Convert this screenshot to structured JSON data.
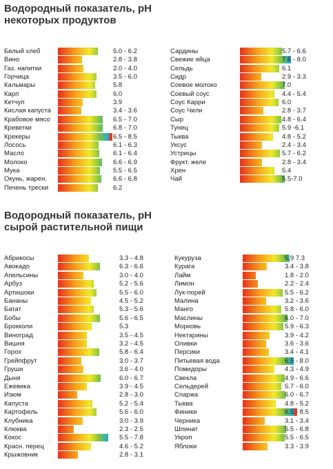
{
  "section1": {
    "title_line1": "Водородный показатель, pH",
    "title_line2": "некоторых продуктов"
  },
  "section2": {
    "title_line1": "Водородный показатель, pH",
    "title_line2": "сырой растительной пищи"
  },
  "colors": {
    "gradient": [
      "#e8301c",
      "#f7a21b",
      "#f2e82a",
      "#84c441",
      "#1aa7e0"
    ]
  },
  "chart_data": [
    {
      "type": "bar",
      "title": "Водородный показатель, pH некоторых продуктов",
      "xlabel": "",
      "ylabel": "",
      "xlim": [
        0,
        8
      ],
      "grid": false,
      "columns": [
        {
          "items": [
            {
              "name": "Белый хлеб",
              "range_label": "5.0 - 6.2",
              "min": 5.0,
              "max": 6.2
            },
            {
              "name": "Вино",
              "range_label": "2.8 - 3.8",
              "min": 2.8,
              "max": 3.8
            },
            {
              "name": "Газ. напитки",
              "range_label": "2.0 - 4.0",
              "min": 2.0,
              "max": 4.0
            },
            {
              "name": "Горчица",
              "range_label": "3.5 - 6.0",
              "min": 3.5,
              "max": 6.0
            },
            {
              "name": "Кальмары",
              "range_label": "5.8",
              "min": 5.8,
              "max": 5.8
            },
            {
              "name": "Карп",
              "range_label": "6.0",
              "min": 6.0,
              "max": 6.0
            },
            {
              "name": "Кетчуп",
              "range_label": "3.9",
              "min": 3.9,
              "max": 3.9
            },
            {
              "name": "Кислая капуста",
              "range_label": "3.4 - 3.6",
              "min": 3.4,
              "max": 3.6
            },
            {
              "name": "Крабовое мясо",
              "range_label": "6.5 - 7.0",
              "min": 6.5,
              "max": 7.0
            },
            {
              "name": "Креветки",
              "range_label": "6.8 - 7.0",
              "min": 6.8,
              "max": 7.0
            },
            {
              "name": "Крекеры",
              "range_label": "6.5 - 8.5",
              "min": 6.5,
              "max": 8.5
            },
            {
              "name": "Лосось",
              "range_label": "6.1 - 6.3",
              "min": 6.1,
              "max": 6.3
            },
            {
              "name": "Масло",
              "range_label": "6.1 - 6.4",
              "min": 6.1,
              "max": 6.4
            },
            {
              "name": "Молоко",
              "range_label": "6.6 - 6.9",
              "min": 6.6,
              "max": 6.9
            },
            {
              "name": "Мука",
              "range_label": "5.5 - 6.5",
              "min": 5.5,
              "max": 6.5
            },
            {
              "name": "Окунь, жарен.",
              "range_label": "6.6 - 6.8",
              "min": 6.6,
              "max": 6.8
            },
            {
              "name": "Печень трески",
              "range_label": "6.2",
              "min": 6.2,
              "max": 6.2
            }
          ]
        },
        {
          "items": [
            {
              "name": "Сардины",
              "range_label": "5.7 - 6.6",
              "min": 5.7,
              "max": 6.6
            },
            {
              "name": "Свежие яйца",
              "range_label": "7.6 - 8.0",
              "min": 7.6,
              "max": 8.0
            },
            {
              "name": "Сельдь",
              "range_label": "6.1",
              "min": 6.1,
              "max": 6.1
            },
            {
              "name": "Сидр",
              "range_label": "2.9 - 3.3",
              "min": 2.9,
              "max": 3.3
            },
            {
              "name": "Соевое молоко",
              "range_label": "7.0",
              "min": 7.0,
              "max": 7.0
            },
            {
              "name": "Соевый соус",
              "range_label": "4.4 - 5.4",
              "min": 4.4,
              "max": 5.4
            },
            {
              "name": "Соус Карри",
              "range_label": "6.0",
              "min": 6.0,
              "max": 6.0
            },
            {
              "name": "Соус Чили",
              "range_label": "2.8 - 3.7",
              "min": 2.8,
              "max": 3.7
            },
            {
              "name": "Сыр",
              "range_label": "4.8 - 6.4",
              "min": 4.8,
              "max": 6.4
            },
            {
              "name": "Тунец",
              "range_label": "5.9 -6.1",
              "min": 5.9,
              "max": 6.1
            },
            {
              "name": "Тыква",
              "range_label": "4.8 - 5.2",
              "min": 4.8,
              "max": 5.2
            },
            {
              "name": "Уксус",
              "range_label": "2.4 - 3.4",
              "min": 2.4,
              "max": 3.4
            },
            {
              "name": "Устрицы",
              "range_label": "5.7 - 6.2",
              "min": 5.7,
              "max": 6.2
            },
            {
              "name": "Фрукт. желе",
              "range_label": "2.8 - 3.4",
              "min": 2.8,
              "max": 3.4
            },
            {
              "name": "Хрен",
              "range_label": "5.4",
              "min": 5.4,
              "max": 5.4
            },
            {
              "name": "Чай",
              "range_label": "5.5-7.0",
              "min": 5.5,
              "max": 7.0
            }
          ]
        }
      ]
    },
    {
      "type": "bar",
      "title": "Водородный показатель, pH сырой растительной пищи",
      "xlabel": "",
      "ylabel": "",
      "xlim": [
        0,
        8
      ],
      "grid": false,
      "columns": [
        {
          "items": [
            {
              "name": "Абрикосы",
              "range_label": "3.3 - 4.8",
              "min": 3.3,
              "max": 4.8
            },
            {
              "name": "Авокадо",
              "range_label": "6.3 - 6.6",
              "min": 6.3,
              "max": 6.6
            },
            {
              "name": "Апельсины",
              "range_label": "3.0 - 4.0",
              "min": 3.0,
              "max": 4.0
            },
            {
              "name": "Арбуз",
              "range_label": "5.2 - 5.6",
              "min": 5.2,
              "max": 5.6
            },
            {
              "name": "Артишоки",
              "range_label": "5.5 - 6.0",
              "min": 5.5,
              "max": 6.0
            },
            {
              "name": "Бананы",
              "range_label": "4.5 - 5.2",
              "min": 4.5,
              "max": 5.2
            },
            {
              "name": "Батат",
              "range_label": "5.3 - 5.6",
              "min": 5.3,
              "max": 5.6
            },
            {
              "name": "Бобы",
              "range_label": "5.6 - 6.5",
              "min": 5.6,
              "max": 6.5
            },
            {
              "name": "Брокколи",
              "range_label": "5.3",
              "min": 5.3,
              "max": 5.3
            },
            {
              "name": "Виноград",
              "range_label": "3.5 - 4.5",
              "min": 3.5,
              "max": 4.5
            },
            {
              "name": "Вишня",
              "range_label": "3.2 - 4.5",
              "min": 3.2,
              "max": 4.5
            },
            {
              "name": "Горох",
              "range_label": "5.8 - 6.4",
              "min": 5.8,
              "max": 6.4
            },
            {
              "name": "Грейпфрут",
              "range_label": "3.0 - 3.7",
              "min": 3.0,
              "max": 3.7
            },
            {
              "name": "Груши",
              "range_label": "3.6 - 4.0",
              "min": 3.6,
              "max": 4.0
            },
            {
              "name": "Дыня",
              "range_label": "6.0 - 6.7",
              "min": 6.0,
              "max": 6.7
            },
            {
              "name": "Ежевика",
              "range_label": "3.9 - 4.5",
              "min": 3.9,
              "max": 4.5
            },
            {
              "name": "Изюм",
              "range_label": "2.8 - 3.0",
              "min": 2.8,
              "max": 3.0
            },
            {
              "name": "Капуста",
              "range_label": "5.2 - 5.4",
              "min": 5.2,
              "max": 5.4
            },
            {
              "name": "Картофель",
              "range_label": "5.6 - 6.0",
              "min": 5.6,
              "max": 6.0
            },
            {
              "name": "Клубника",
              "range_label": "3.0 - 3.9",
              "min": 3.0,
              "max": 3.9
            },
            {
              "name": "Клюква",
              "range_label": "2.3 - 2.5",
              "min": 2.3,
              "max": 2.5
            },
            {
              "name": "Кокос",
              "range_label": "5.5 - 7.8",
              "min": 5.5,
              "max": 7.8
            },
            {
              "name": "Красн. перец",
              "range_label": "4.6 - 5.2",
              "min": 4.6,
              "max": 5.2
            },
            {
              "name": "Крыжовник",
              "range_label": "2.8 - 3.1",
              "min": 2.8,
              "max": 3.1
            }
          ]
        },
        {
          "items": [
            {
              "name": "Кукуруза",
              "range_label": "5.9  7.3",
              "min": 5.9,
              "max": 7.3
            },
            {
              "name": "Курага",
              "range_label": "3.4 - 3.8",
              "min": 3.4,
              "max": 3.8
            },
            {
              "name": "Лайм",
              "range_label": "1.8 - 2.0",
              "min": 1.8,
              "max": 2.0
            },
            {
              "name": "Лимон",
              "range_label": "2.2 - 2.4",
              "min": 2.2,
              "max": 2.4
            },
            {
              "name": "Лук-порей",
              "range_label": "5.5 - 6.2",
              "min": 5.5,
              "max": 6.2
            },
            {
              "name": "Малина",
              "range_label": "3.2 - 3.6",
              "min": 3.2,
              "max": 3.6
            },
            {
              "name": "Манго",
              "range_label": "5.8 - 6.0",
              "min": 5.8,
              "max": 6.0
            },
            {
              "name": "Маслины",
              "range_label": "6.0 - 7.0",
              "min": 6.0,
              "max": 7.0
            },
            {
              "name": "Морковь",
              "range_label": "5.9 - 6.3",
              "min": 5.9,
              "max": 6.3
            },
            {
              "name": "Нектарины",
              "range_label": "3.9 - 4.2",
              "min": 3.9,
              "max": 4.2
            },
            {
              "name": "Оливки",
              "range_label": "3.6 - 3.6",
              "min": 3.6,
              "max": 3.6
            },
            {
              "name": "Персики",
              "range_label": "3.4 - 4.1",
              "min": 3.4,
              "max": 4.1
            },
            {
              "name": "Питьевая вода",
              "range_label": "6.5 - 8.0",
              "min": 6.5,
              "max": 8.0
            },
            {
              "name": "Помидоры",
              "range_label": "4.3 - 4.9",
              "min": 4.3,
              "max": 4.9
            },
            {
              "name": "Свекла",
              "range_label": "4.9 - 6.6",
              "min": 4.9,
              "max": 6.6
            },
            {
              "name": "Сельдерей",
              "range_label": "5.7 - 6.0",
              "min": 5.7,
              "max": 6.0
            },
            {
              "name": "Спаржа",
              "range_label": "6.0 - 6.7",
              "min": 6.0,
              "max": 6.7
            },
            {
              "name": "Тыква",
              "range_label": "4.8 - 5.2",
              "min": 4.8,
              "max": 5.2
            },
            {
              "name": "Финики",
              "range_label": "6.5 - 8.5",
              "min": 6.5,
              "max": 8.5
            },
            {
              "name": "Черника",
              "range_label": "3.1 - 3.4",
              "min": 3.1,
              "max": 3.4
            },
            {
              "name": "Шпинат",
              "range_label": "5.5 - 6.8",
              "min": 5.5,
              "max": 6.8
            },
            {
              "name": "Укроп",
              "range_label": "5.5 - 6.5",
              "min": 5.5,
              "max": 6.5
            },
            {
              "name": "Яблоки",
              "range_label": "3.3 - 3.9",
              "min": 3.3,
              "max": 3.9
            }
          ]
        }
      ]
    }
  ]
}
